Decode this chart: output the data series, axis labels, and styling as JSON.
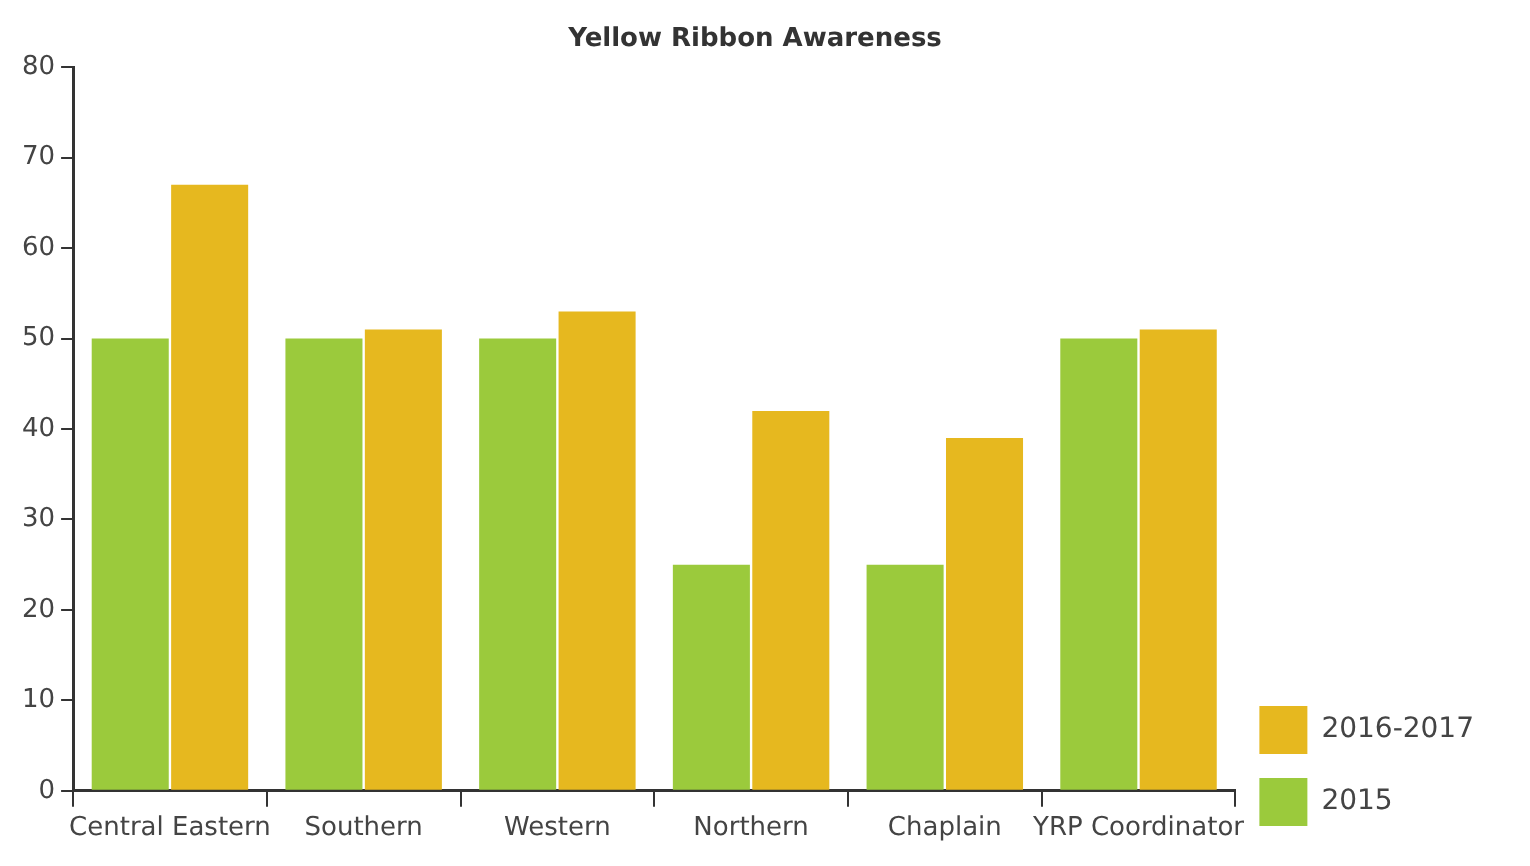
{
  "chart_data": {
    "type": "bar",
    "title": "Yellow Ribbon Awareness",
    "categories": [
      "Central Eastern",
      "Southern",
      "Western",
      "Northern",
      "Chaplain",
      "YRP Coordinator"
    ],
    "series": [
      {
        "name": "2015",
        "color": "#9bca3c",
        "values": [
          50,
          50,
          50,
          25,
          25,
          50
        ]
      },
      {
        "name": "2016-2017",
        "color": "#e6b81f",
        "values": [
          67,
          51,
          53,
          42,
          39,
          51
        ]
      }
    ],
    "ylim": [
      0,
      80
    ],
    "yticks": [
      0,
      10,
      20,
      30,
      40,
      50,
      60,
      70,
      80
    ],
    "grid": false,
    "legend": "bottom right"
  }
}
